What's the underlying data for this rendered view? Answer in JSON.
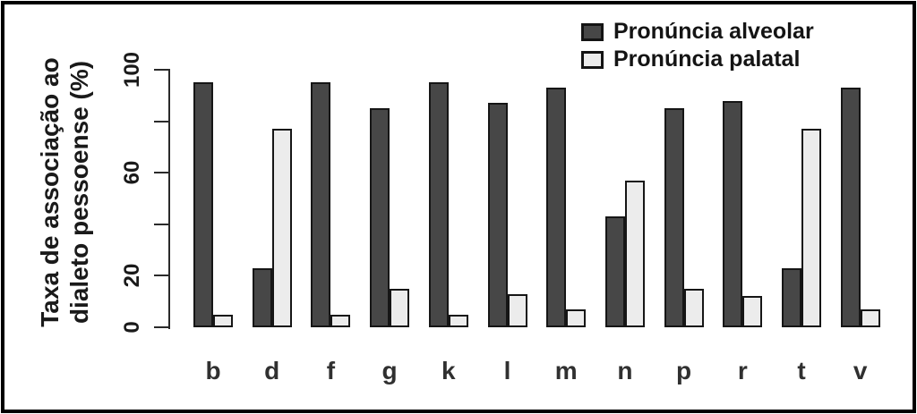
{
  "y_axis": {
    "title_line1": "Taxa de associação ao",
    "title_line2": "dialeto pessoense (%)",
    "ticks": [
      {
        "value": 0,
        "label": "0"
      },
      {
        "value": 20,
        "label": "20"
      },
      {
        "value": 40,
        "label": ""
      },
      {
        "value": 60,
        "label": "60"
      },
      {
        "value": 80,
        "label": ""
      },
      {
        "value": 100,
        "label": "100"
      }
    ]
  },
  "legend": {
    "items": [
      {
        "label": "Pronúncia alveolar",
        "color": "#474747"
      },
      {
        "label": "Pronúncia palatal",
        "color": "#ececec"
      }
    ]
  },
  "chart_data": {
    "type": "bar",
    "title": "",
    "xlabel": "",
    "ylabel": "Taxa de associação ao dialeto pessoense (%)",
    "ylim": [
      0,
      100
    ],
    "grid": false,
    "legend_position": "top-right",
    "bar_border_color": "#161616",
    "categories": [
      "b",
      "d",
      "f",
      "g",
      "k",
      "l",
      "m",
      "n",
      "p",
      "r",
      "t",
      "v"
    ],
    "series": [
      {
        "name": "Pronúncia alveolar",
        "color": "#474747",
        "values": [
          95,
          23,
          95,
          85,
          95,
          87,
          93,
          43,
          85,
          88,
          23,
          93
        ]
      },
      {
        "name": "Pronúncia palatal",
        "color": "#ececec",
        "values": [
          5,
          77,
          5,
          15,
          5,
          13,
          7,
          57,
          15,
          12,
          77,
          7
        ]
      }
    ]
  }
}
